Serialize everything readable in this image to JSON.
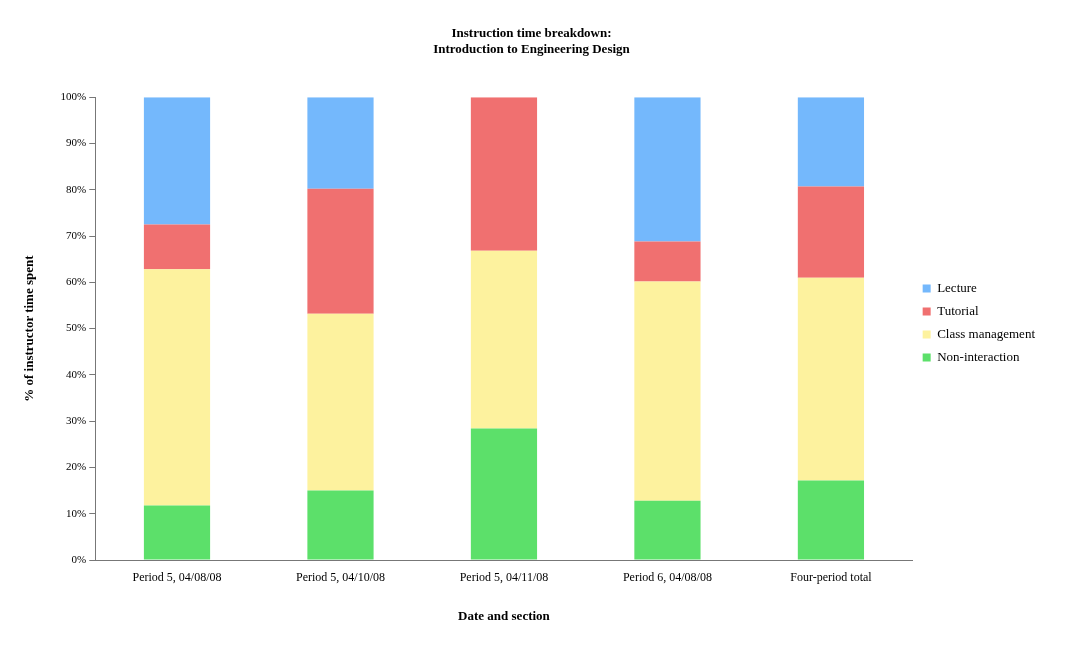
{
  "chart_data": {
    "type": "bar",
    "stacked": true,
    "title": "Instruction time breakdown:\nIntroduction to Engineering Design",
    "xlabel": "Date and section",
    "ylabel": "% of instructor time spent",
    "categories": [
      "Period 5, 04/08/08",
      "Period 5, 04/10/08",
      "Period 5, 04/11/08",
      "Period 6, 04/08/08",
      "Four-period total"
    ],
    "series": [
      {
        "name": "Non-interaction",
        "color": "#5ce06a",
        "values": [
          11.8,
          15.0,
          28.4,
          12.8,
          17.2
        ]
      },
      {
        "name": "Class management",
        "color": "#fdf29e",
        "values": [
          51.0,
          38.2,
          38.4,
          47.4,
          43.8
        ]
      },
      {
        "name": "Tutorial",
        "color": "#f07070",
        "values": [
          9.7,
          27.0,
          33.2,
          8.6,
          19.7
        ]
      },
      {
        "name": "Lecture",
        "color": "#74b8fc",
        "values": [
          27.5,
          19.8,
          0,
          31.2,
          19.3
        ]
      }
    ],
    "ylim": [
      0,
      100
    ],
    "yticks": [
      {
        "value": 0,
        "label": "0%"
      },
      {
        "value": 10,
        "label": "10%"
      },
      {
        "value": 20,
        "label": "20%"
      },
      {
        "value": 30,
        "label": "30%"
      },
      {
        "value": 40,
        "label": "40%"
      },
      {
        "value": 50,
        "label": "50%"
      },
      {
        "value": 60,
        "label": "60%"
      },
      {
        "value": 70,
        "label": "70%"
      },
      {
        "value": 80,
        "label": "80%"
      },
      {
        "value": 90,
        "label": "90%"
      },
      {
        "value": 100,
        "label": "100%"
      }
    ],
    "grid": false,
    "legend": "right"
  }
}
